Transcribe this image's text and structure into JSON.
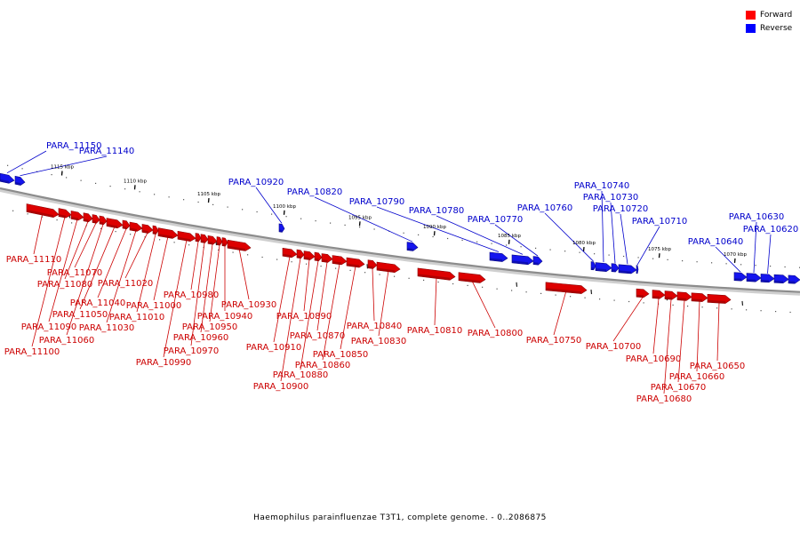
{
  "legend": {
    "forward_label": "Forward",
    "reverse_label": "Reverse",
    "forward_color": "#ff0000",
    "reverse_color": "#0000ff"
  },
  "caption": "Haemophilus parainfluenzae T3T1, complete genome. - 0..2086875",
  "colors": {
    "forward": "#dd0000",
    "forward_label": "#cc0000",
    "reverse": "#1515ee",
    "reverse_label": "#0000cc",
    "backbone": "#8c8c8c"
  },
  "ticks": [
    "1115 kbp",
    "1110 kbp",
    "1105 kbp",
    "1100 kbp",
    "1095 kbp",
    "1090 kbp",
    "1085 kbp",
    "1080 kbp",
    "1075 kbp",
    "1070 kbp"
  ],
  "reverse_genes": [
    "PARA_11150",
    "PARA_11140",
    "PARA_10920",
    "PARA_10820",
    "PARA_10790",
    "PARA_10780",
    "PARA_10770",
    "PARA_10760",
    "PARA_10740",
    "PARA_10730",
    "PARA_10720",
    "PARA_10710",
    "PARA_10640",
    "PARA_10630",
    "PARA_10620"
  ],
  "forward_genes": [
    "PARA_11110",
    "PARA_11100",
    "PARA_11090",
    "PARA_11080",
    "PARA_11070",
    "PARA_11060",
    "PARA_11050",
    "PARA_11040",
    "PARA_11030",
    "PARA_11020",
    "PARA_11010",
    "PARA_11000",
    "PARA_10990",
    "PARA_10980",
    "PARA_10970",
    "PARA_10960",
    "PARA_10950",
    "PARA_10940",
    "PARA_10930",
    "PARA_10910",
    "PARA_10900",
    "PARA_10890",
    "PARA_10880",
    "PARA_10870",
    "PARA_10860",
    "PARA_10850",
    "PARA_10840",
    "PARA_10830",
    "PARA_10810",
    "PARA_10800",
    "PARA_10750",
    "PARA_10700",
    "PARA_10690",
    "PARA_10680",
    "PARA_10670",
    "PARA_10660",
    "PARA_10650"
  ]
}
